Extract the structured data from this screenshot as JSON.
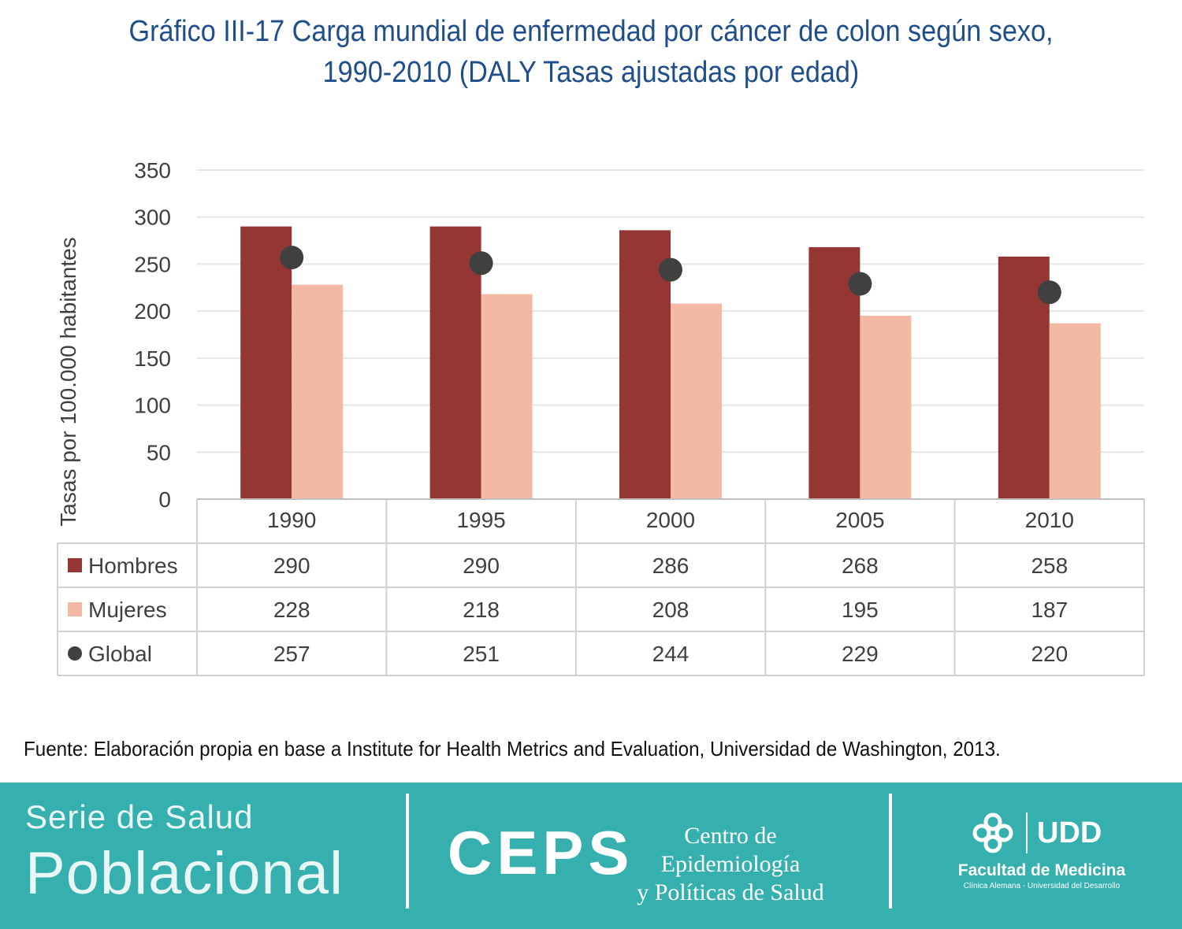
{
  "title": {
    "line1": "Gráfico III-17 Carga mundial de enfermedad por cáncer de colon según sexo,",
    "line2": "1990-2010 (DALY Tasas ajustadas por edad)"
  },
  "chart_data": {
    "type": "bar",
    "categories": [
      "1990",
      "1995",
      "2000",
      "2005",
      "2010"
    ],
    "series": [
      {
        "name": "Hombres",
        "kind": "bar",
        "color": "#943634",
        "values": [
          290,
          290,
          286,
          268,
          258
        ]
      },
      {
        "name": "Mujeres",
        "kind": "bar",
        "color": "#f4b9a5",
        "values": [
          228,
          218,
          208,
          195,
          187
        ]
      },
      {
        "name": "Global",
        "kind": "marker",
        "color": "#404040",
        "values": [
          257,
          251,
          244,
          229,
          220
        ]
      }
    ],
    "ylabel": "Tasas por 100.000 habitantes",
    "ylim": [
      0,
      350
    ],
    "yticks": [
      0,
      50,
      100,
      150,
      200,
      250,
      300,
      350
    ],
    "grid": true,
    "legend": "data-table"
  },
  "source": "Fuente: Elaboración propia en base a Institute for Health Metrics and Evaluation, Universidad de Washington, 2013.",
  "footer": {
    "serie_line1": "Serie de Salud",
    "serie_line2": "Poblacional",
    "ceps": "CEPS",
    "ceps_sub_line1": "Centro de Epidemiología",
    "ceps_sub_line2": "y Políticas de Salud",
    "udd_logo_text": "UDD",
    "faculty": "Facultad de Medicina",
    "faculty_sub": "Clínica Alemana - Universidad del Desarrollo"
  }
}
